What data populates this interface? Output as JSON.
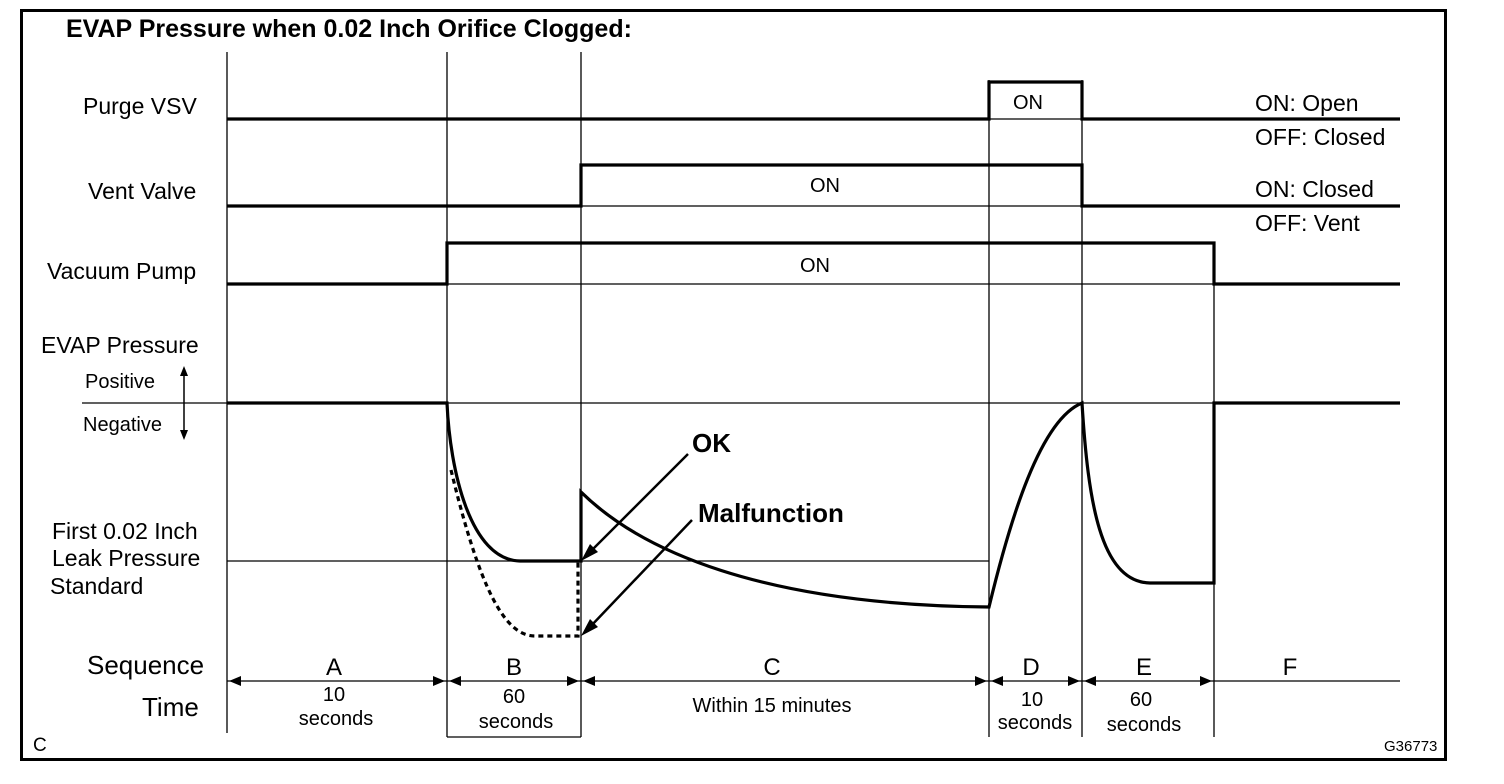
{
  "title": "EVAP Pressure when 0.02 Inch Orifice Clogged:",
  "rows": {
    "purge": {
      "label": "Purge VSV",
      "on_text": "ON",
      "legend_on": "ON: Open",
      "legend_off": "OFF: Closed"
    },
    "vent": {
      "label": "Vent Valve",
      "on_text": "ON",
      "legend_on": "ON: Closed",
      "legend_off": "OFF: Vent"
    },
    "pump": {
      "label": "Vacuum Pump",
      "on_text": "ON"
    },
    "pressure": {
      "label": "EVAP Pressure",
      "positive": "Positive",
      "negative": "Negative"
    },
    "standard": {
      "line1": "First 0.02 Inch",
      "line2": "Leak Pressure",
      "line3": "Standard"
    }
  },
  "annotations": {
    "ok": "OK",
    "malfunction": "Malfunction"
  },
  "sequence_label": "Sequence",
  "time_label": "Time",
  "phases": [
    {
      "id": "A",
      "time_line1": "10",
      "time_line2": "seconds"
    },
    {
      "id": "B",
      "time_line1": "60",
      "time_line2": "seconds"
    },
    {
      "id": "C",
      "time_line1": "Within 15 minutes",
      "time_line2": ""
    },
    {
      "id": "D",
      "time_line1": "10",
      "time_line2": "seconds"
    },
    {
      "id": "E",
      "time_line1": "60",
      "time_line2": "seconds"
    },
    {
      "id": "F",
      "time_line1": "",
      "time_line2": ""
    }
  ],
  "corner_label": "C",
  "figure_code": "G36773"
}
